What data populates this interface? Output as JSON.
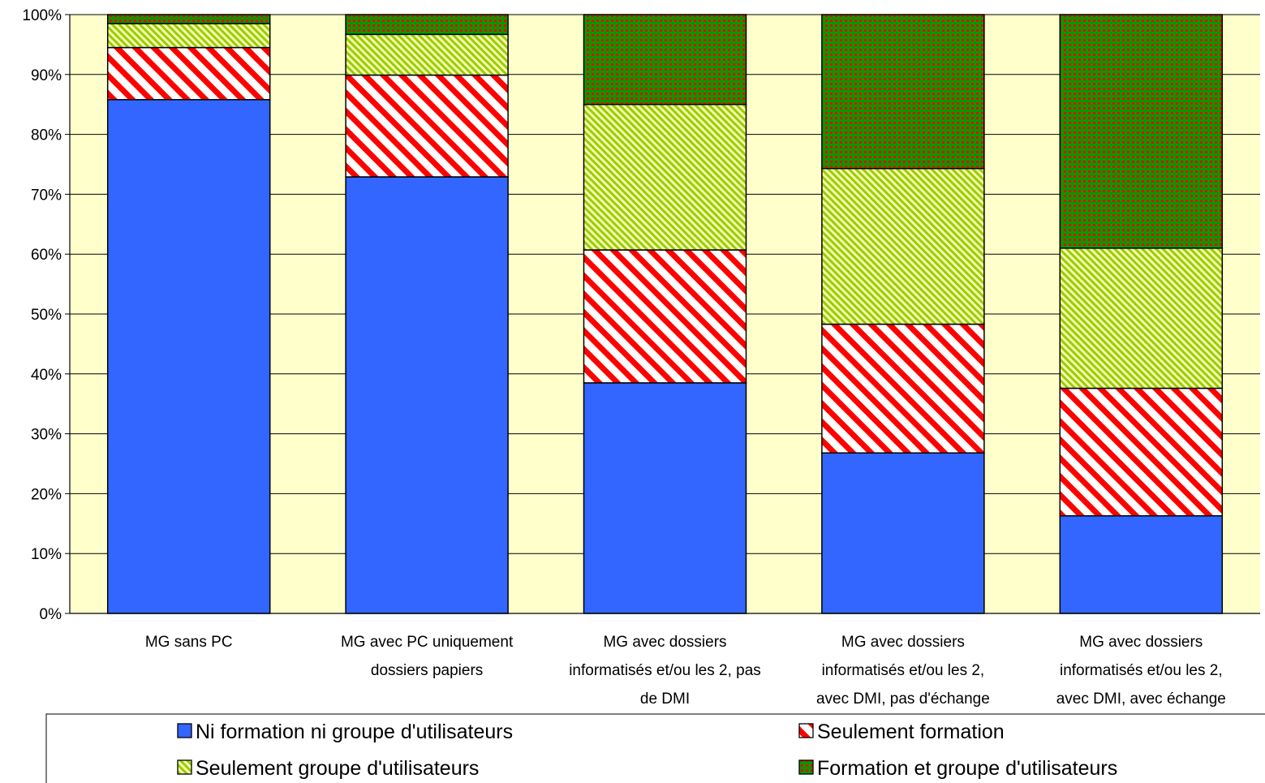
{
  "chart_data": {
    "type": "bar",
    "stacked": true,
    "normalized": true,
    "categories": [
      [
        "MG sans PC"
      ],
      [
        "MG avec PC uniquement",
        "dossiers papiers"
      ],
      [
        "MG avec dossiers",
        "informatisés et/ou les 2, pas",
        "de DMI"
      ],
      [
        "MG avec dossiers",
        "informatisés et/ou les 2,",
        "avec DMI, pas d'échange"
      ],
      [
        "MG avec dossiers",
        "informatisés et/ou les 2,",
        "avec DMI, avec échange"
      ]
    ],
    "series": [
      {
        "name": "Ni formation ni groupe d'utilisateurs",
        "values": [
          85.8,
          72.9,
          38.5,
          26.8,
          16.3
        ],
        "color": "#3366FF",
        "pattern": "solid"
      },
      {
        "name": "Seulement formation",
        "values": [
          8.7,
          17.0,
          22.2,
          21.5,
          21.3
        ],
        "color": "#FF0000",
        "pattern": "diagonal-stripes"
      },
      {
        "name": "Seulement groupe d'utilisateurs",
        "values": [
          4.0,
          6.8,
          24.3,
          26.0,
          23.4
        ],
        "color": "#99CC00",
        "pattern": "fine-diagonal-stripes"
      },
      {
        "name": "Formation et groupe d'utilisateurs",
        "values": [
          1.5,
          3.3,
          15.0,
          25.7,
          39.0
        ],
        "color": "#009900",
        "pattern": "checker"
      }
    ],
    "y_ticks": [
      "0%",
      "10%",
      "20%",
      "30%",
      "40%",
      "50%",
      "60%",
      "70%",
      "80%",
      "90%",
      "100%"
    ],
    "ylim": [
      0,
      100
    ],
    "grid": true,
    "plot_background": "#FFFFCC",
    "legend_position": "bottom",
    "title": "",
    "xlabel": "",
    "ylabel": ""
  }
}
